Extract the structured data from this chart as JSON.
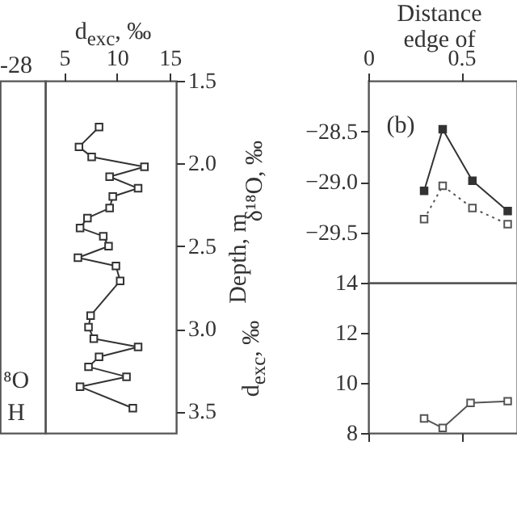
{
  "chart_data": [
    {
      "type": "other",
      "annotations": [
        "-28",
        "⁸O",
        "H"
      ]
    },
    {
      "type": "line",
      "xlabel": "d$_{exc}$, ‰",
      "ylabel": "Depth, m",
      "marker": "square",
      "x": [
        8.3,
        6.4,
        7.6,
        12.6,
        9.3,
        12.0,
        9.6,
        9.3,
        7.2,
        6.5,
        8.7,
        9.2,
        6.3,
        9.9,
        10.3,
        7.5,
        7.3,
        7.8,
        12.0,
        8.3,
        7.3,
        10.9,
        6.5,
        11.5
      ],
      "series": [
        {
          "color": "#333333",
          "values": [
            1.78,
            1.9,
            1.96,
            2.02,
            2.08,
            2.15,
            2.2,
            2.27,
            2.33,
            2.39,
            2.44,
            2.5,
            2.57,
            2.62,
            2.71,
            2.92,
            2.99,
            3.06,
            3.11,
            3.17,
            3.23,
            3.29,
            3.35,
            3.48
          ]
        }
      ],
      "xlim": [
        3.2,
        15.6
      ],
      "xticks": [
        5,
        10,
        15
      ],
      "ylim": [
        3.63,
        1.5
      ],
      "yticks": [
        1.5,
        {
          "value": 2,
          "label": "2.0"
        },
        2.5,
        {
          "value": 3,
          "label": "3.0"
        },
        3.5
      ]
    },
    {
      "type": "line",
      "xlabel": "Distance\nedge of",
      "ylabel": "δ¹⁸O, ‰",
      "annotations": [
        "(b)"
      ],
      "marker": "square",
      "x": [
        0.3,
        0.4,
        0.56,
        0.75
      ],
      "series": [
        {
          "color": "#333333",
          "line_style": "solid",
          "values": [
            -29.09,
            -28.48,
            -28.99,
            -29.29
          ]
        },
        {
          "color": "#555555",
          "line_style": "dotted",
          "values": [
            -29.37,
            -29.04,
            -29.26,
            -29.42
          ]
        }
      ],
      "xlim": [
        0,
        0.8
      ],
      "xticks": [
        0,
        0.5
      ],
      "ylim": [
        -30,
        -28
      ],
      "yticks": [
        {
          "value": -28.5,
          "label": "−28.5"
        },
        {
          "value": -29,
          "label": "−29.0"
        },
        {
          "value": -29.5,
          "label": "−29.5"
        }
      ]
    },
    {
      "type": "line",
      "ylabel": "d$_{exc}$, ‰",
      "marker": "square",
      "tick_labels": "y",
      "x": [
        0.3,
        0.4,
        0.55,
        0.75
      ],
      "series": [
        {
          "color": "#555555",
          "values": [
            8.58,
            8.2,
            9.2,
            9.27
          ]
        }
      ],
      "xlim": [
        0,
        0.8
      ],
      "xticks": [
        0,
        0.5
      ],
      "ylim": [
        8,
        14
      ],
      "yticks": [
        8,
        10,
        12,
        14
      ]
    }
  ]
}
